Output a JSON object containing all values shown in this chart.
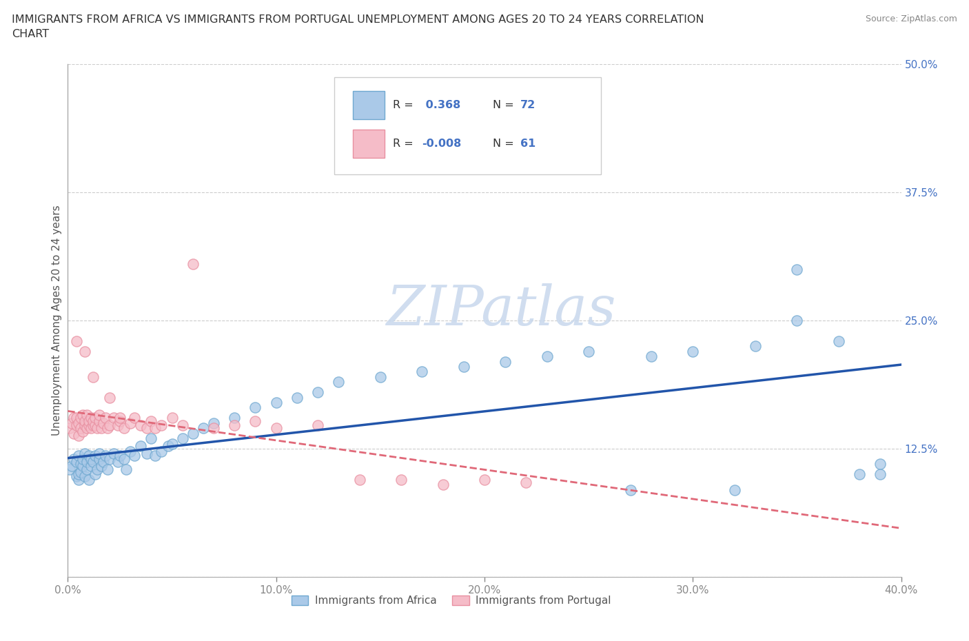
{
  "title_line1": "IMMIGRANTS FROM AFRICA VS IMMIGRANTS FROM PORTUGAL UNEMPLOYMENT AMONG AGES 20 TO 24 YEARS CORRELATION",
  "title_line2": "CHART",
  "source": "Source: ZipAtlas.com",
  "ylabel": "Unemployment Among Ages 20 to 24 years",
  "xlim": [
    0.0,
    0.4
  ],
  "ylim": [
    0.0,
    0.5
  ],
  "africa_color": "#6fa8d0",
  "africa_fill": "#aac9e8",
  "portugal_color": "#e88fa0",
  "portugal_fill": "#f5bcc8",
  "africa_line_color": "#2255aa",
  "portugal_line_color": "#e06878",
  "africa_R": 0.368,
  "africa_N": 72,
  "portugal_R": -0.008,
  "portugal_N": 61,
  "watermark": "ZIPatlas",
  "background_color": "#ffffff",
  "grid_color": "#cccccc",
  "africa_x": [
    0.001,
    0.002,
    0.003,
    0.004,
    0.004,
    0.005,
    0.005,
    0.005,
    0.006,
    0.006,
    0.007,
    0.007,
    0.008,
    0.008,
    0.009,
    0.009,
    0.01,
    0.01,
    0.011,
    0.011,
    0.012,
    0.013,
    0.013,
    0.014,
    0.015,
    0.015,
    0.016,
    0.017,
    0.018,
    0.019,
    0.02,
    0.022,
    0.024,
    0.025,
    0.027,
    0.028,
    0.03,
    0.032,
    0.035,
    0.038,
    0.04,
    0.042,
    0.045,
    0.048,
    0.05,
    0.055,
    0.06,
    0.065,
    0.07,
    0.08,
    0.09,
    0.1,
    0.11,
    0.12,
    0.13,
    0.15,
    0.17,
    0.19,
    0.21,
    0.23,
    0.25,
    0.28,
    0.3,
    0.33,
    0.35,
    0.37,
    0.38,
    0.39,
    0.35,
    0.39,
    0.32,
    0.27
  ],
  "africa_y": [
    0.105,
    0.108,
    0.115,
    0.098,
    0.112,
    0.095,
    0.1,
    0.118,
    0.102,
    0.11,
    0.108,
    0.115,
    0.098,
    0.12,
    0.105,
    0.112,
    0.095,
    0.118,
    0.108,
    0.115,
    0.112,
    0.1,
    0.118,
    0.105,
    0.115,
    0.12,
    0.108,
    0.112,
    0.118,
    0.105,
    0.115,
    0.12,
    0.112,
    0.118,
    0.115,
    0.105,
    0.122,
    0.118,
    0.128,
    0.12,
    0.135,
    0.118,
    0.122,
    0.128,
    0.13,
    0.135,
    0.14,
    0.145,
    0.15,
    0.155,
    0.165,
    0.17,
    0.175,
    0.18,
    0.19,
    0.195,
    0.2,
    0.205,
    0.21,
    0.215,
    0.22,
    0.215,
    0.22,
    0.225,
    0.25,
    0.23,
    0.1,
    0.1,
    0.3,
    0.11,
    0.085,
    0.085
  ],
  "portugal_x": [
    0.001,
    0.002,
    0.003,
    0.003,
    0.004,
    0.004,
    0.005,
    0.005,
    0.006,
    0.006,
    0.007,
    0.007,
    0.008,
    0.008,
    0.009,
    0.009,
    0.01,
    0.01,
    0.011,
    0.011,
    0.012,
    0.012,
    0.013,
    0.013,
    0.014,
    0.015,
    0.015,
    0.016,
    0.017,
    0.018,
    0.019,
    0.02,
    0.022,
    0.024,
    0.025,
    0.027,
    0.03,
    0.032,
    0.035,
    0.038,
    0.04,
    0.042,
    0.045,
    0.05,
    0.055,
    0.06,
    0.07,
    0.08,
    0.09,
    0.1,
    0.12,
    0.14,
    0.16,
    0.18,
    0.2,
    0.22,
    0.004,
    0.008,
    0.012,
    0.02,
    0.025
  ],
  "portugal_y": [
    0.145,
    0.15,
    0.155,
    0.14,
    0.148,
    0.155,
    0.15,
    0.138,
    0.145,
    0.155,
    0.142,
    0.158,
    0.148,
    0.152,
    0.145,
    0.158,
    0.148,
    0.152,
    0.145,
    0.155,
    0.148,
    0.152,
    0.148,
    0.155,
    0.145,
    0.152,
    0.158,
    0.145,
    0.15,
    0.155,
    0.145,
    0.148,
    0.155,
    0.148,
    0.152,
    0.145,
    0.15,
    0.155,
    0.148,
    0.145,
    0.152,
    0.145,
    0.148,
    0.155,
    0.148,
    0.305,
    0.145,
    0.148,
    0.152,
    0.145,
    0.148,
    0.095,
    0.095,
    0.09,
    0.095,
    0.092,
    0.23,
    0.22,
    0.195,
    0.175,
    0.155
  ]
}
